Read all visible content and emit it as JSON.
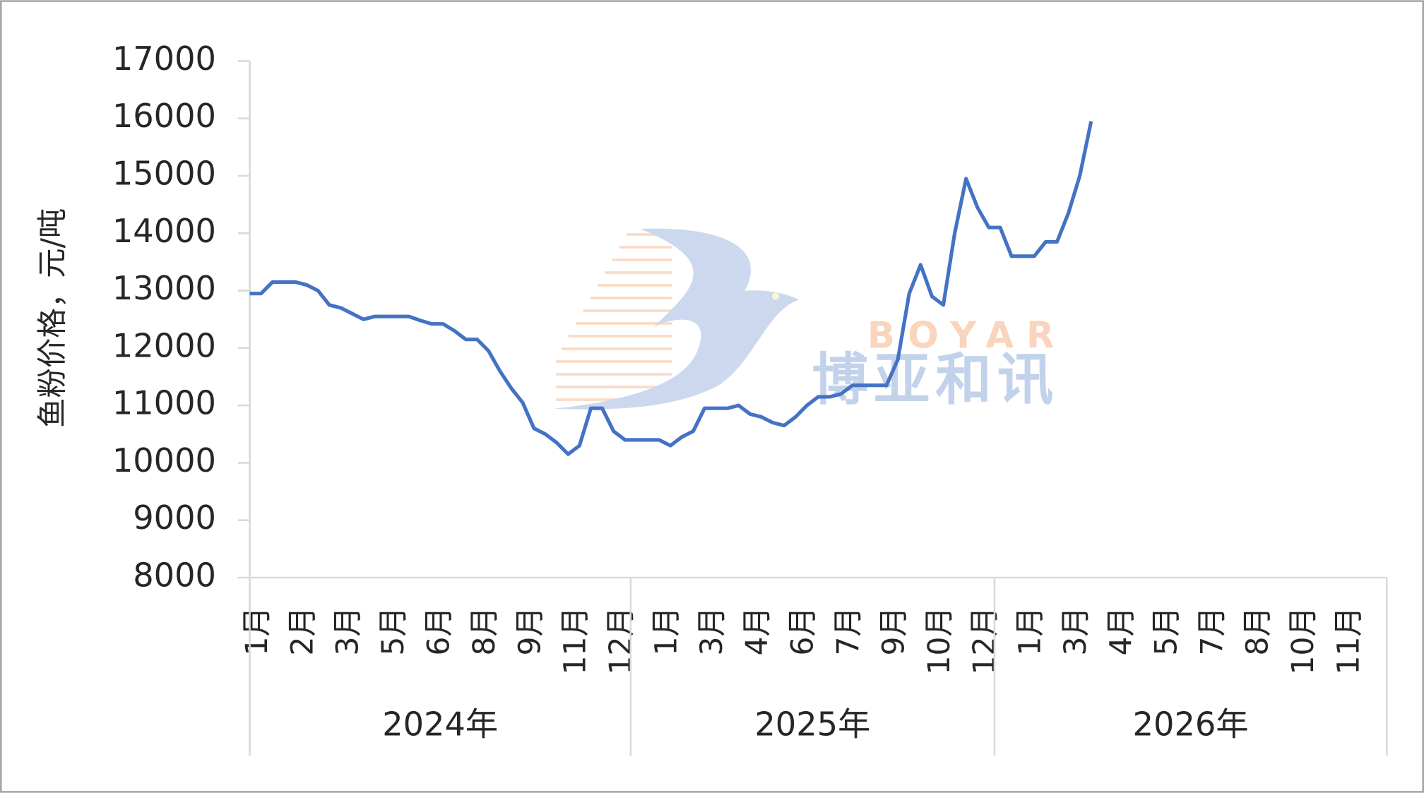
{
  "chart_data": {
    "type": "line",
    "y_axis_title": "鱼粉价格，元/吨",
    "watermark": [
      "BOYAR",
      "博亚和讯"
    ],
    "categories": [
      "1月",
      null,
      null,
      null,
      "2月",
      null,
      null,
      null,
      "3月",
      null,
      null,
      null,
      "5月",
      null,
      null,
      null,
      "6月",
      null,
      null,
      null,
      "8月",
      null,
      null,
      null,
      "9月",
      null,
      null,
      null,
      "11月",
      null,
      null,
      null,
      "12月",
      null,
      null,
      null,
      "1月",
      null,
      null,
      null,
      "3月",
      null,
      null,
      null,
      "4月",
      null,
      null,
      null,
      "6月",
      null,
      null,
      null,
      "7月",
      null,
      null,
      null,
      "9月",
      null,
      null,
      null,
      "10月",
      null,
      null,
      null,
      "12月",
      null,
      null,
      null,
      "1月",
      null,
      null,
      null,
      "3月",
      null,
      null,
      null,
      "4月",
      null,
      null,
      null,
      "5月",
      null,
      null,
      null,
      "7月",
      null,
      null,
      null,
      "8月",
      null,
      null,
      null,
      "10月",
      null,
      null,
      null,
      "11月",
      null,
      null,
      null
    ],
    "year_labels": [
      "2024年",
      "2025年",
      "2026年"
    ],
    "series": [
      {
        "color": "#4472c4",
        "values": [
          12950,
          12950,
          13150,
          13150,
          13150,
          13100,
          13000,
          12750,
          12700,
          12600,
          12500,
          12550,
          12550,
          12550,
          12550,
          12480,
          12420,
          12420,
          12300,
          12150,
          12150,
          11950,
          11600,
          11300,
          11050,
          10600,
          10500,
          10350,
          10150,
          10300,
          10950,
          10950,
          10550,
          10400,
          10400,
          10400,
          10400,
          10300,
          10450,
          10550,
          10950,
          10950,
          10950,
          11000,
          10850,
          10800,
          10700,
          10650,
          10800,
          11000,
          11150,
          11150,
          11200,
          11350,
          11350,
          11350,
          11350,
          11800,
          12950,
          13450,
          12900,
          12750,
          14000,
          14950,
          14450,
          14100,
          14100,
          13600,
          13600,
          13600,
          13850,
          13850,
          14350,
          15000,
          15950,
          null,
          null,
          null,
          null,
          null,
          null,
          null,
          null,
          null,
          null,
          null,
          null,
          null,
          null,
          null,
          null,
          null,
          null,
          null,
          null,
          null,
          null,
          null,
          null,
          null
        ]
      }
    ],
    "ylim": [
      8000,
      17000
    ],
    "yticks": [
      8000,
      9000,
      10000,
      11000,
      12000,
      13000,
      14000,
      15000,
      16000,
      17000
    ],
    "grid": false
  }
}
